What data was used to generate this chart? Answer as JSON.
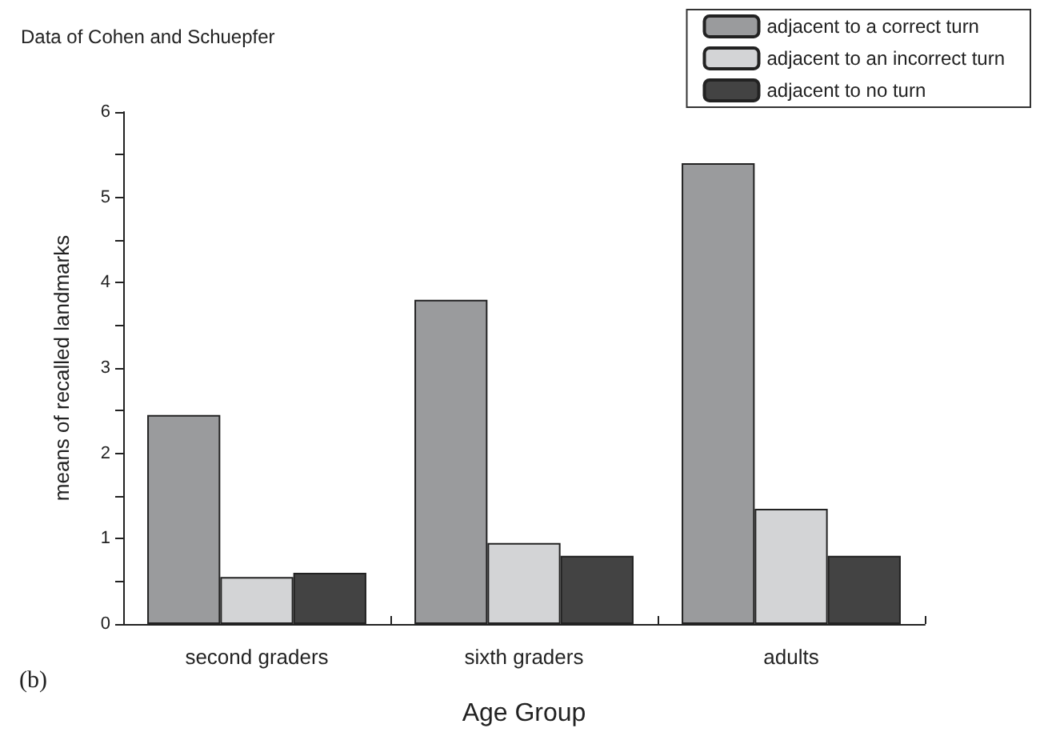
{
  "chart_data": {
    "type": "bar",
    "title": "Data of Cohen and Schuepfer",
    "xlabel": "Age Group",
    "ylabel": "means of recalled landmarks",
    "annotations": [
      "(b)"
    ],
    "categories": [
      "second graders",
      "sixth graders",
      "adults"
    ],
    "series": [
      {
        "name": "adjacent to a correct turn",
        "color": "#9a9b9d",
        "values": [
          2.45,
          3.8,
          5.4
        ]
      },
      {
        "name": "adjacent to an incorrect turn",
        "color": "#d3d4d6",
        "values": [
          0.55,
          0.95,
          1.35
        ]
      },
      {
        "name": "adjacent to no turn",
        "color": "#434343",
        "values": [
          0.6,
          0.8,
          0.8
        ]
      }
    ],
    "ylim": [
      0,
      6
    ],
    "yticks": [
      0,
      {
        "value": 0.5,
        "label": null
      },
      1,
      {
        "value": 1.5,
        "label": null
      },
      2,
      {
        "value": 2.5,
        "label": null
      },
      3,
      {
        "value": 3.5,
        "label": null
      },
      4,
      {
        "value": 4.5,
        "label": null
      },
      5,
      {
        "value": 5.5,
        "label": null
      },
      6
    ],
    "grid": false,
    "legend": "top right"
  }
}
